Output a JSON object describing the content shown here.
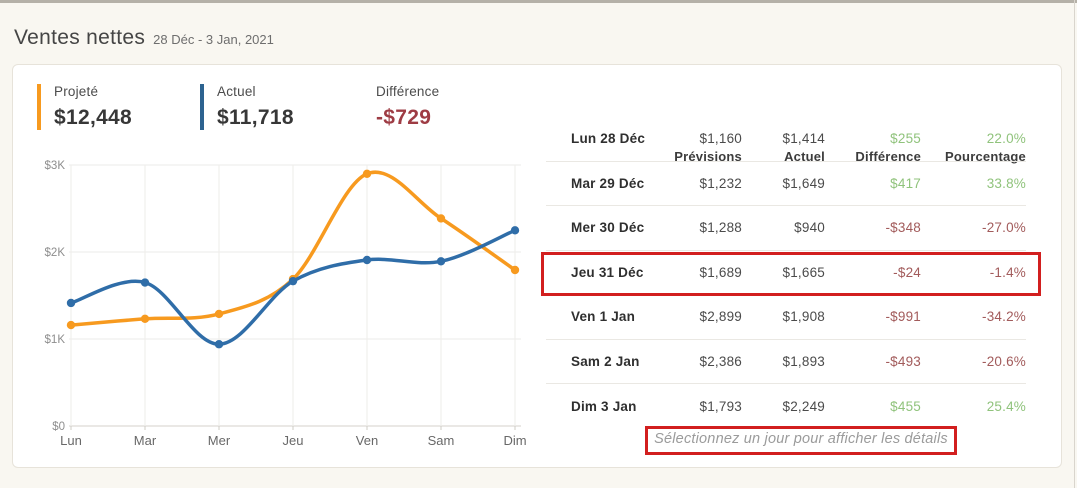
{
  "page": {
    "title": "Ventes nettes",
    "date_range": "28 Déc - 3 Jan, 2021"
  },
  "summary": {
    "projected": {
      "label": "Projeté",
      "value": "$12,448",
      "color": "#f79a1f"
    },
    "actual": {
      "label": "Actuel",
      "value": "$11,718",
      "color": "#2d6390"
    },
    "difference": {
      "label": "Différence",
      "value": "-$729",
      "color": "#9e3c44"
    }
  },
  "chart_data": {
    "type": "line",
    "x": [
      "Lun",
      "Mar",
      "Mer",
      "Jeu",
      "Ven",
      "Sam",
      "Dim"
    ],
    "series": [
      {
        "name": "Projeté",
        "color": "#f79a1f",
        "values": [
          1160,
          1232,
          1288,
          1689,
          2899,
          2386,
          1793
        ]
      },
      {
        "name": "Actuel",
        "color": "#2f6da8",
        "values": [
          1414,
          1649,
          940,
          1665,
          1908,
          1893,
          2249
        ]
      }
    ],
    "y_ticks": [
      {
        "value": 0,
        "label": "$0"
      },
      {
        "value": 1000,
        "label": "$1K"
      },
      {
        "value": 2000,
        "label": "$2K"
      },
      {
        "value": 3000,
        "label": "$3K"
      }
    ],
    "ylim": [
      0,
      3000
    ],
    "grid": true,
    "legend_position": "none"
  },
  "table": {
    "headers": [
      "Prévisions",
      "Actuel",
      "Différence",
      "Pourcentage"
    ],
    "positive_color": "#90c37c",
    "negative_color": "#a25b5b",
    "rows": [
      {
        "day": "Lun 28 Déc",
        "previsions": "$1,160",
        "actuel": "$1,414",
        "difference": "$255",
        "pourcentage": "22.0%",
        "trend": "positive"
      },
      {
        "day": "Mar 29 Déc",
        "previsions": "$1,232",
        "actuel": "$1,649",
        "difference": "$417",
        "pourcentage": "33.8%",
        "trend": "positive"
      },
      {
        "day": "Mer 30 Déc",
        "previsions": "$1,288",
        "actuel": "$940",
        "difference": "-$348",
        "pourcentage": "-27.0%",
        "trend": "negative"
      },
      {
        "day": "Jeu 31 Déc",
        "previsions": "$1,689",
        "actuel": "$1,665",
        "difference": "-$24",
        "pourcentage": "-1.4%",
        "trend": "negative"
      },
      {
        "day": "Ven 1 Jan",
        "previsions": "$2,899",
        "actuel": "$1,908",
        "difference": "-$991",
        "pourcentage": "-34.2%",
        "trend": "negative"
      },
      {
        "day": "Sam 2 Jan",
        "previsions": "$2,386",
        "actuel": "$1,893",
        "difference": "-$493",
        "pourcentage": "-20.6%",
        "trend": "negative"
      },
      {
        "day": "Dim 3 Jan",
        "previsions": "$1,793",
        "actuel": "$2,249",
        "difference": "$455",
        "pourcentage": "25.4%",
        "trend": "positive"
      }
    ],
    "footer_note": "Sélectionnez un jour pour afficher les détails"
  },
  "annotations": {
    "highlighted_row": "Jeu 31 Déc",
    "highlighted_row_index": 3,
    "highlight_color": "#d21f1f",
    "footer_note_highlighted": true
  }
}
